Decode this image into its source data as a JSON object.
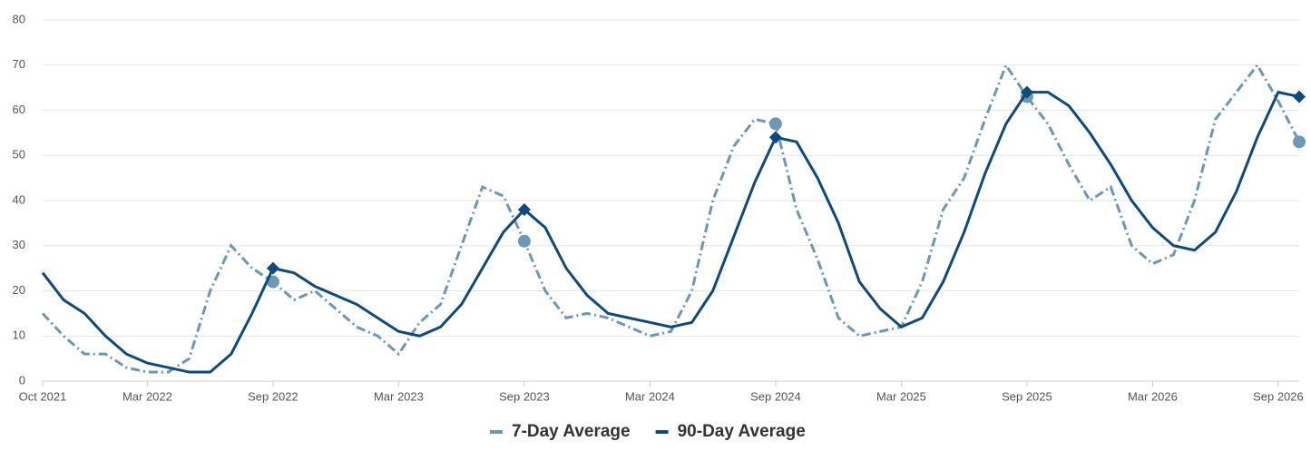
{
  "chart_data": {
    "type": "line",
    "categories": [
      "Oct 2021",
      null,
      null,
      null,
      null,
      "Mar 2022",
      null,
      null,
      null,
      null,
      null,
      "Sep 2022",
      null,
      null,
      null,
      null,
      null,
      "Mar 2023",
      null,
      null,
      null,
      null,
      null,
      "Sep 2023",
      null,
      null,
      null,
      null,
      null,
      "Mar 2024",
      null,
      null,
      null,
      null,
      null,
      "Sep 2024",
      null,
      null,
      null,
      null,
      null,
      "Mar 2025",
      null,
      null,
      null,
      null,
      null,
      "Sep 2025",
      null,
      null,
      null,
      null,
      null,
      "Mar 2026",
      null,
      null,
      null,
      null,
      null,
      "Sep 2026",
      null
    ],
    "series": [
      {
        "name": "7-Day Average",
        "color": "#6c98b8",
        "dashed": true,
        "values": [
          15,
          10,
          6,
          6,
          3,
          2,
          2,
          5,
          20,
          30,
          25,
          22,
          18,
          20,
          16,
          12,
          10,
          6,
          13,
          17,
          30,
          43,
          41,
          31,
          20,
          14,
          15,
          14,
          12,
          10,
          11,
          20,
          40,
          52,
          58,
          57,
          38,
          27,
          14,
          10,
          11,
          12,
          22,
          38,
          45,
          58,
          70,
          63,
          57,
          48,
          40,
          43,
          30,
          26,
          28,
          40,
          58,
          64,
          70,
          62,
          53
        ]
      },
      {
        "name": "90-Day Average",
        "color": "#0e4a7e",
        "dashed": false,
        "values": [
          24,
          18,
          15,
          10,
          6,
          4,
          3,
          2,
          2,
          6,
          15,
          25,
          24,
          21,
          19,
          17,
          14,
          11,
          10,
          12,
          17,
          25,
          33,
          38,
          34,
          25,
          19,
          15,
          14,
          13,
          12,
          13,
          20,
          32,
          44,
          54,
          53,
          45,
          35,
          22,
          16,
          12,
          14,
          22,
          33,
          46,
          57,
          64,
          64,
          61,
          55,
          48,
          40,
          34,
          30,
          29,
          33,
          42,
          54,
          64,
          63
        ]
      }
    ],
    "ylim": [
      0,
      80
    ],
    "yticks": [
      0,
      10,
      20,
      30,
      40,
      50,
      60,
      70,
      80
    ],
    "grid": true,
    "legend": "bottom"
  }
}
